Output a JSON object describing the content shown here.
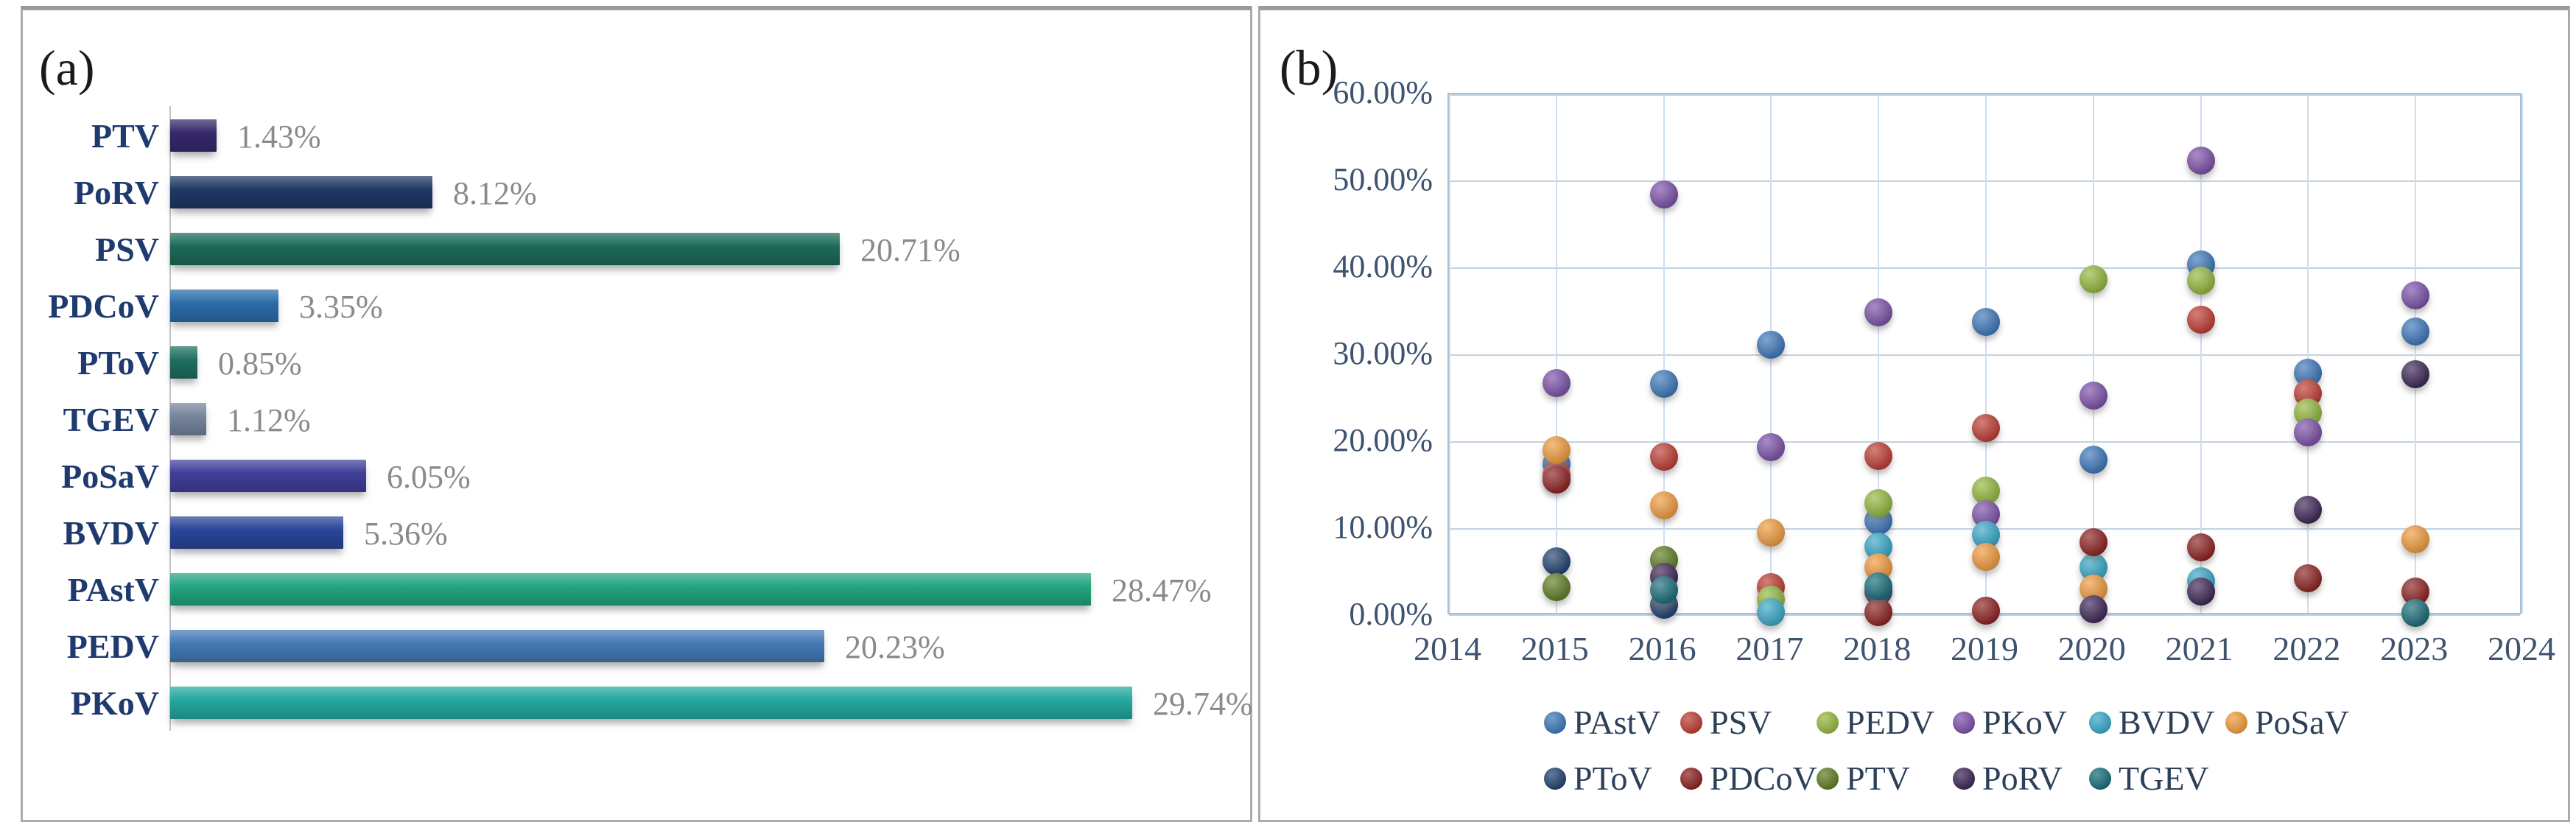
{
  "panels": {
    "a": {
      "label": "(a)"
    },
    "b": {
      "label": "(b)"
    }
  },
  "chart_data": [
    {
      "type": "bar",
      "orientation": "horizontal",
      "title": "",
      "xlabel": "",
      "ylabel": "",
      "xlim": [
        0,
        30.8
      ],
      "grid": false,
      "categories": [
        "PTV",
        "PoRV",
        "PSV",
        "PDCoV",
        "PToV",
        "TGEV",
        "PoSaV",
        "BVDV",
        "PAstV",
        "PEDV",
        "PKoV"
      ],
      "values": [
        1.43,
        8.12,
        20.71,
        3.35,
        0.85,
        1.12,
        6.05,
        5.36,
        28.47,
        20.23,
        29.74
      ],
      "value_labels": [
        "1.43%",
        "8.12%",
        "20.71%",
        "3.35%",
        "0.85%",
        "1.12%",
        "6.05%",
        "5.36%",
        "28.47%",
        "20.23%",
        "29.74%"
      ],
      "bar_colors": [
        "#35296b",
        "#1f3864",
        "#1d6a59",
        "#2a6ca8",
        "#206e5f",
        "#76849b",
        "#3f3f99",
        "#2a4599",
        "#23a47f",
        "#4379b4",
        "#24a79f"
      ],
      "category_label_color": "#1e3a6e",
      "value_label_color": "#8a8a8a"
    },
    {
      "type": "scatter",
      "title": "",
      "xlabel": "",
      "ylabel": "",
      "xlim": [
        2014,
        2024
      ],
      "ylim": [
        0,
        60
      ],
      "grid": true,
      "x_ticks": [
        "2014",
        "2015",
        "2016",
        "2017",
        "2018",
        "2019",
        "2020",
        "2021",
        "2022",
        "2023",
        "2024"
      ],
      "y_ticks_top_to_bottom": [
        "60.00%",
        "50.00%",
        "40.00%",
        "30.00%",
        "20.00%",
        "10.00%",
        "0.00%"
      ],
      "axis_text_color": "#3e536f",
      "gridline_color": "#c3d2e0",
      "legend_position": "bottom",
      "legend_rows": [
        [
          "PAstV",
          "PSV",
          "PEDV",
          "PKoV",
          "BVDV",
          "PoSaV"
        ],
        [
          "PToV",
          "PDCoV",
          "PTV",
          "PoRV",
          "TGEV"
        ]
      ],
      "series": [
        {
          "name": "PAstV",
          "color": "#3b76b9",
          "points": [
            [
              2015,
              17.5
            ],
            [
              2016,
              26.7
            ],
            [
              2017,
              31.2
            ],
            [
              2018,
              10.9
            ],
            [
              2019,
              33.8
            ],
            [
              2020,
              18.0
            ],
            [
              2021,
              40.4
            ],
            [
              2022,
              28.0
            ],
            [
              2023,
              32.7
            ]
          ]
        },
        {
          "name": "PSV",
          "color": "#be3a31",
          "points": [
            [
              2015,
              16.2
            ],
            [
              2016,
              18.3
            ],
            [
              2017,
              3.3
            ],
            [
              2018,
              18.4
            ],
            [
              2019,
              21.6
            ],
            [
              2021,
              34.1
            ],
            [
              2022,
              25.6
            ]
          ]
        },
        {
          "name": "PEDV",
          "color": "#92b73c",
          "points": [
            [
              2017,
              1.9
            ],
            [
              2018,
              13.0
            ],
            [
              2019,
              14.4
            ],
            [
              2020,
              38.7
            ],
            [
              2021,
              38.6
            ],
            [
              2022,
              23.4
            ]
          ]
        },
        {
          "name": "PKoV",
          "color": "#7a4fa8",
          "points": [
            [
              2015,
              26.8
            ],
            [
              2016,
              48.5
            ],
            [
              2017,
              19.4
            ],
            [
              2018,
              34.9
            ],
            [
              2019,
              11.7
            ],
            [
              2020,
              25.3
            ],
            [
              2021,
              52.4
            ],
            [
              2022,
              21.1
            ],
            [
              2023,
              36.9
            ]
          ]
        },
        {
          "name": "BVDV",
          "color": "#35a7c6",
          "points": [
            [
              2017,
              0.4
            ],
            [
              2018,
              8.0
            ],
            [
              2019,
              9.3
            ],
            [
              2020,
              5.6
            ],
            [
              2021,
              4.0
            ]
          ]
        },
        {
          "name": "PoSaV",
          "color": "#f09a3c",
          "points": [
            [
              2015,
              19.1
            ],
            [
              2016,
              12.7
            ],
            [
              2017,
              9.6
            ],
            [
              2018,
              5.6
            ],
            [
              2019,
              6.8
            ],
            [
              2020,
              3.1
            ],
            [
              2023,
              8.8
            ]
          ]
        },
        {
          "name": "PToV",
          "color": "#1f4070",
          "points": [
            [
              2015,
              6.3
            ],
            [
              2016,
              1.3
            ],
            [
              2018,
              2.8
            ]
          ]
        },
        {
          "name": "PDCoV",
          "color": "#8c1f1f",
          "points": [
            [
              2015,
              15.7
            ],
            [
              2018,
              0.4
            ],
            [
              2019,
              0.6
            ],
            [
              2020,
              8.5
            ],
            [
              2021,
              7.9
            ],
            [
              2022,
              4.3
            ],
            [
              2023,
              2.8
            ]
          ]
        },
        {
          "name": "PTV",
          "color": "#5e7b22",
          "points": [
            [
              2015,
              3.3
            ],
            [
              2016,
              6.4
            ]
          ]
        },
        {
          "name": "PoRV",
          "color": "#3b2354",
          "points": [
            [
              2016,
              4.5
            ],
            [
              2020,
              0.8
            ],
            [
              2021,
              2.8
            ],
            [
              2022,
              12.2
            ],
            [
              2023,
              27.8
            ]
          ]
        },
        {
          "name": "TGEV",
          "color": "#166b78",
          "points": [
            [
              2016,
              3.0
            ],
            [
              2018,
              3.4
            ],
            [
              2023,
              0.3
            ]
          ]
        }
      ]
    }
  ]
}
